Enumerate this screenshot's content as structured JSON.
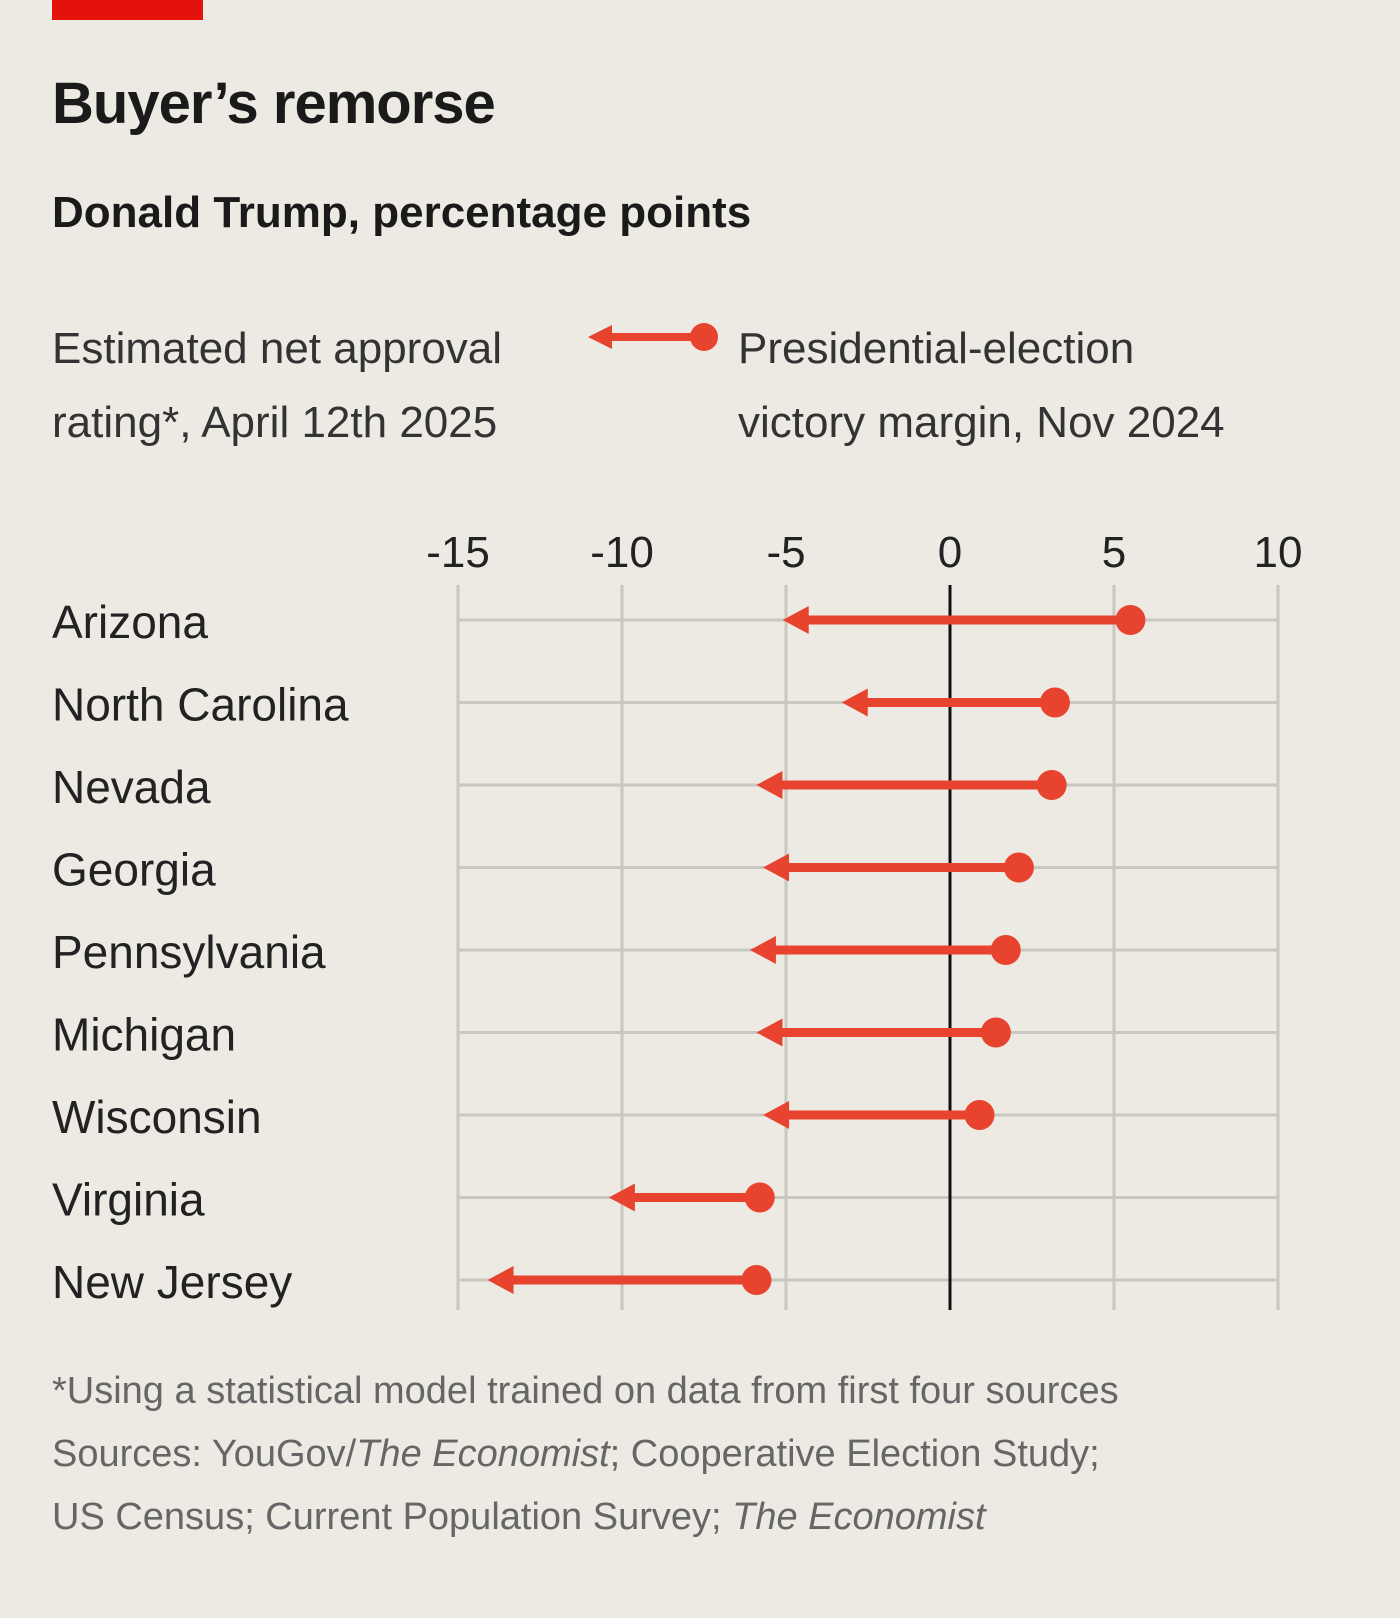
{
  "title": "Buyer’s remorse",
  "subtitle": "Donald Trump, percentage points",
  "legend": {
    "left_line1": "Estimated net approval",
    "left_line2": "rating*, April 12th 2025",
    "right_line1": "Presidential-election",
    "right_line2": "victory margin, Nov 2024"
  },
  "colors": {
    "accent": "#e8432e",
    "brand_red": "#e3120b",
    "background": "#eceae2"
  },
  "chart_data": {
    "type": "dumbbell-arrow",
    "title": "Buyer’s remorse",
    "subtitle": "Donald Trump, percentage points",
    "xlim": [
      -15,
      10
    ],
    "xticks": [
      -15,
      -10,
      -5,
      0,
      5,
      10
    ],
    "xtick_labels": [
      "-15",
      "-10",
      "-5",
      "0",
      "5",
      "10"
    ],
    "grid": true,
    "categories": [
      "Arizona",
      "North Carolina",
      "Nevada",
      "Georgia",
      "Pennsylvania",
      "Michigan",
      "Wisconsin",
      "Virginia",
      "New Jersey"
    ],
    "series": [
      {
        "name": "Presidential-election victory margin, Nov 2024",
        "values": [
          5.5,
          3.2,
          3.1,
          2.1,
          1.7,
          1.4,
          0.9,
          -5.8,
          -5.9
        ]
      },
      {
        "name": "Estimated net approval rating*, April 12th 2025",
        "values": [
          -5.1,
          -3.3,
          -5.9,
          -5.7,
          -6.1,
          -5.9,
          -5.7,
          -10.4,
          -14.1
        ]
      }
    ]
  },
  "footnote": {
    "note": "*Using a statistical model trained on data from first four sources",
    "sources_prefix": "Sources: YouGov/",
    "sources_italic1": "The Economist",
    "sources_mid": "; Cooperative Election Study;",
    "sources_line2": "US Census; Current Population Survey; ",
    "sources_italic2": "The Economist"
  }
}
